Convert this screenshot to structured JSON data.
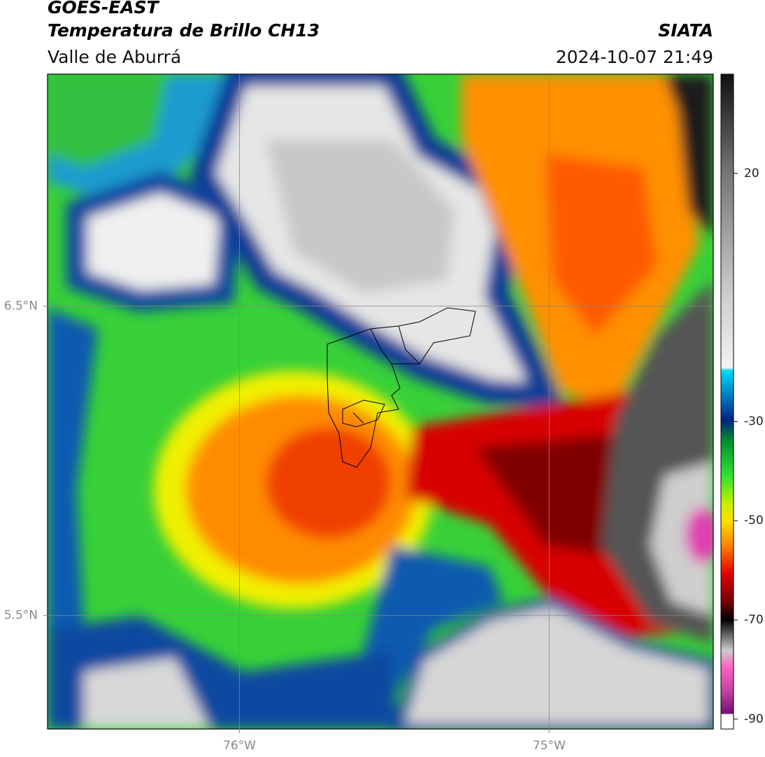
{
  "header": {
    "title": "GOES-EAST",
    "subtitle": "Temperatura de Brillo CH13",
    "region": "Valle de Aburrá",
    "source": "SIATA",
    "datetime": "2024-10-07 21:49"
  },
  "map": {
    "xlim": [
      -76.62,
      -74.47
    ],
    "ylim": [
      5.133,
      7.25
    ],
    "xticks": [
      {
        "value": -76,
        "label": "76°W"
      },
      {
        "value": -75,
        "label": "75°W"
      }
    ],
    "yticks": [
      {
        "value": 6.5,
        "label": "6.5°N"
      },
      {
        "value": 5.5,
        "label": "5.5°N"
      }
    ],
    "grid": true
  },
  "colorbar": {
    "lim": [
      -92,
      40
    ],
    "ticks": [
      20,
      -30,
      -50,
      -70,
      -90
    ]
  }
}
